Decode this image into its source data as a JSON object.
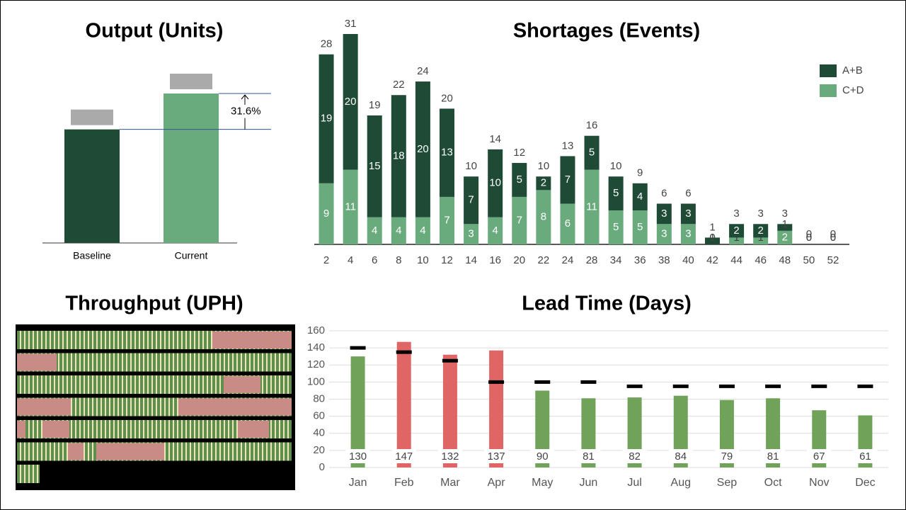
{
  "chart_data": [
    {
      "type": "bar",
      "title": "Output (Units)",
      "categories": [
        "Baseline",
        "Current"
      ],
      "values": [
        100,
        131.6
      ],
      "colors": [
        "#1f4a36",
        "#6aab7e"
      ],
      "annotation": "31.6%"
    },
    {
      "type": "stacked_bar",
      "title": "Shortages (Events)",
      "categories": [
        "2",
        "4",
        "6",
        "8",
        "10",
        "12",
        "14",
        "16",
        "20",
        "22",
        "24",
        "28",
        "34",
        "36",
        "38",
        "40",
        "42",
        "44",
        "46",
        "48",
        "50",
        "52"
      ],
      "series": [
        {
          "name": "A+B",
          "color": "#1f4a36",
          "values": [
            19,
            20,
            15,
            18,
            20,
            13,
            7,
            10,
            5,
            2,
            7,
            5,
            5,
            4,
            3,
            3,
            1,
            2,
            2,
            1,
            0,
            0
          ]
        },
        {
          "name": "C+D",
          "color": "#6aab7e",
          "values": [
            9,
            11,
            4,
            4,
            4,
            7,
            3,
            4,
            7,
            8,
            6,
            11,
            5,
            5,
            3,
            3,
            0,
            1,
            1,
            2,
            0,
            0
          ]
        }
      ],
      "totals": [
        28,
        31,
        19,
        22,
        24,
        20,
        10,
        14,
        12,
        10,
        13,
        16,
        10,
        9,
        6,
        6,
        1,
        3,
        3,
        3,
        0,
        0
      ]
    },
    {
      "type": "image",
      "title": "Throughput (UPH)"
    },
    {
      "type": "bar",
      "title": "Lead Time (Days)",
      "categories": [
        "Jan",
        "Feb",
        "Mar",
        "Apr",
        "May",
        "Jun",
        "Jul",
        "Aug",
        "Sep",
        "Oct",
        "Nov",
        "Dec"
      ],
      "values": [
        130,
        147,
        132,
        137,
        90,
        81,
        82,
        84,
        79,
        81,
        67,
        61
      ],
      "colors": [
        "#70a25a",
        "#e06666",
        "#e06666",
        "#e06666",
        "#70a25a",
        "#70a25a",
        "#70a25a",
        "#70a25a",
        "#70a25a",
        "#70a25a",
        "#70a25a",
        "#70a25a"
      ],
      "targets": [
        140,
        135,
        125,
        100,
        100,
        100,
        95,
        95,
        95,
        95,
        95,
        95
      ],
      "target_color": "#000000",
      "ylim": [
        0,
        160
      ],
      "yticks": [
        0,
        20,
        40,
        60,
        80,
        100,
        120,
        140,
        160
      ],
      "grid": true
    }
  ]
}
